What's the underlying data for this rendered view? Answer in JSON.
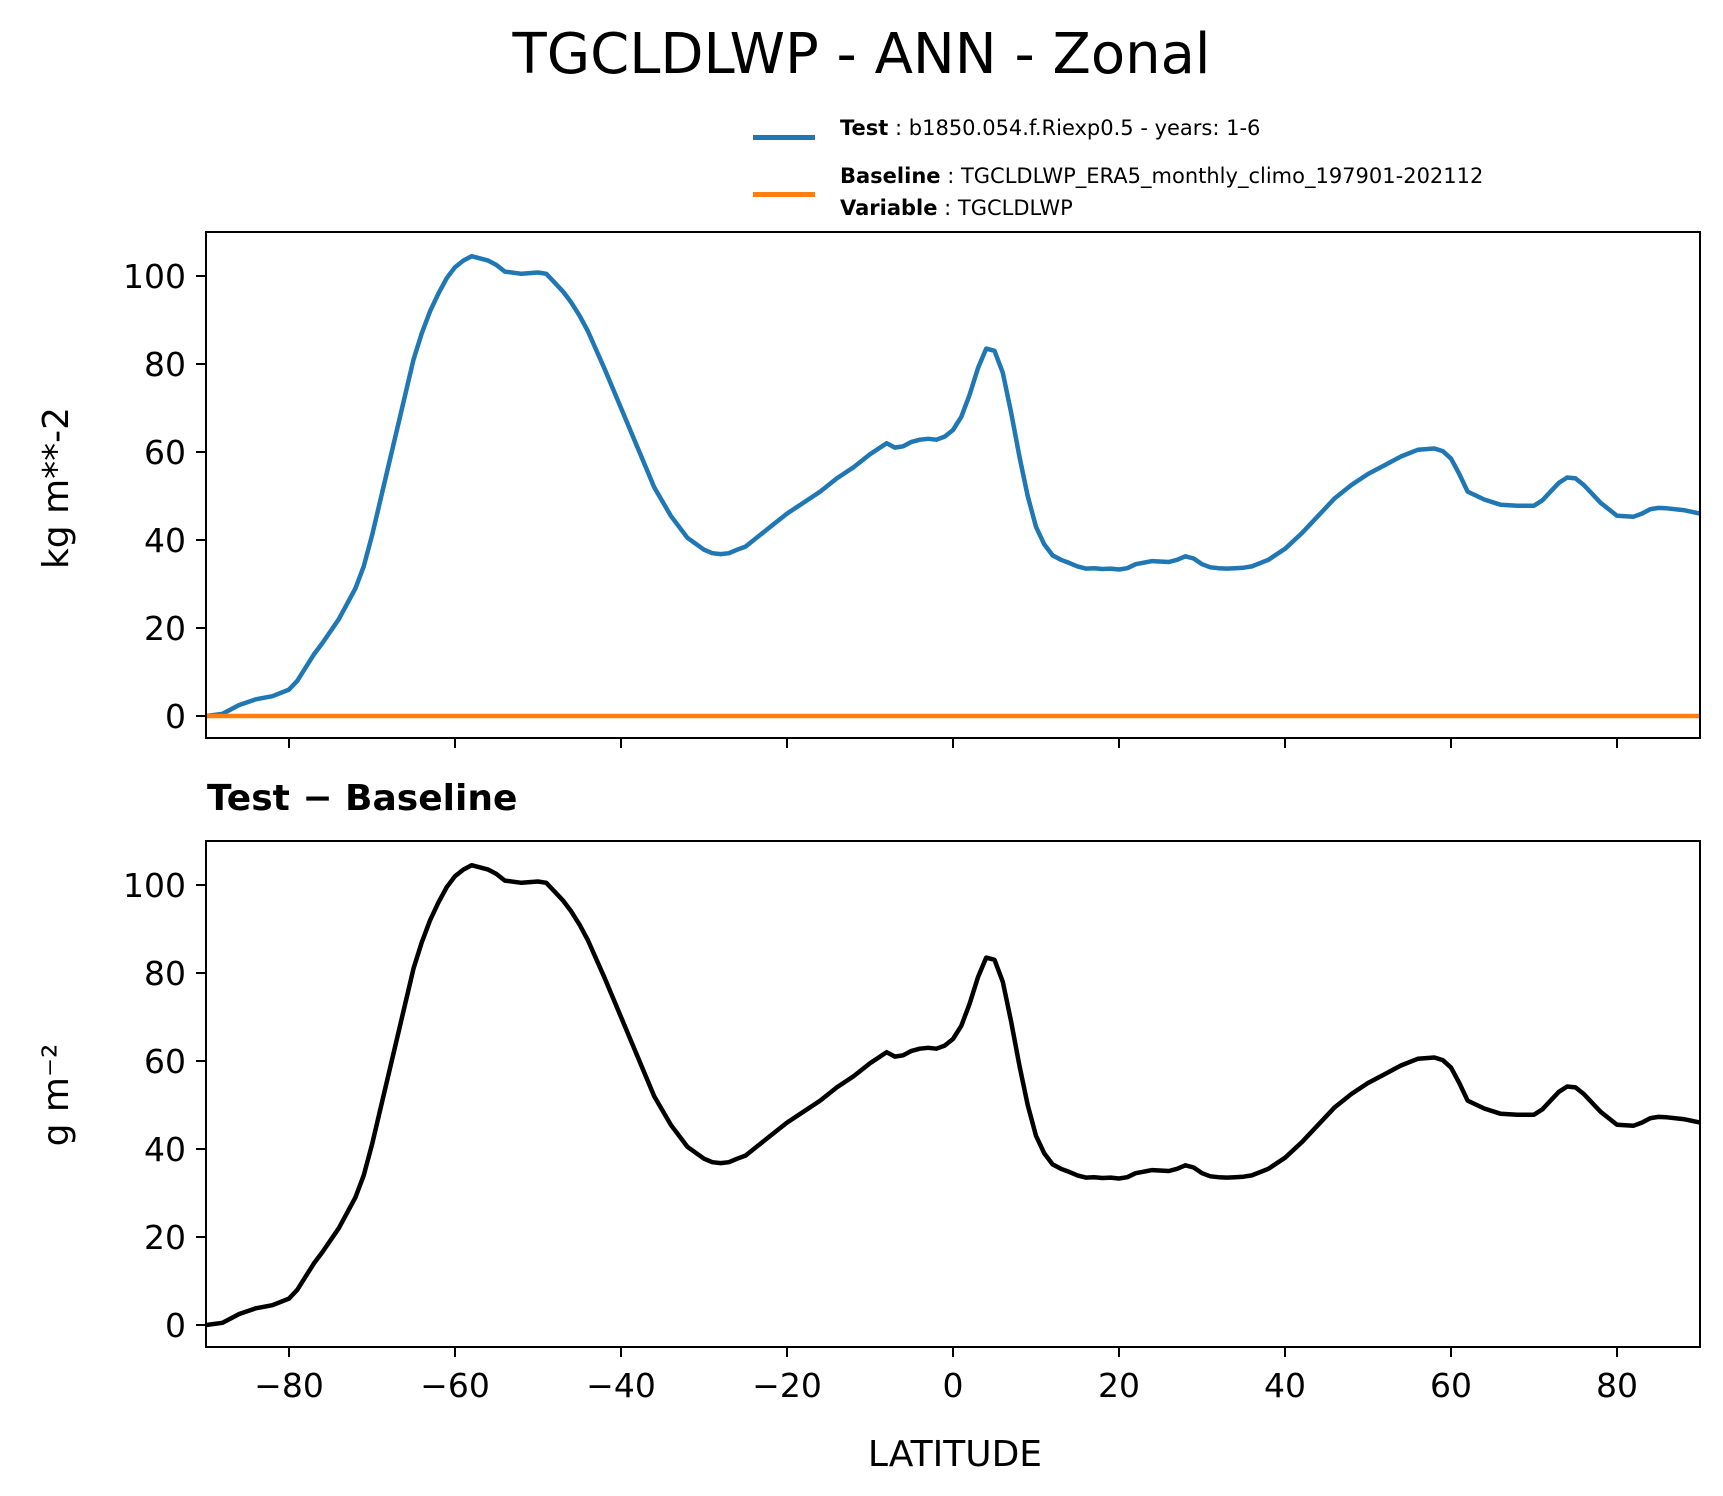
{
  "title": "TGCLDLWP - ANN - Zonal",
  "legend": {
    "test_key": "Test",
    "test_value": "b1850.054.f.Riexp0.5 - years: 1-6",
    "baseline_key": "Baseline",
    "baseline_value": "TGCLDLWP_ERA5_monthly_climo_197901-202112",
    "variable_key": "Variable",
    "variable_value": "TGCLDLWP",
    "test_color": "#1f77b4",
    "baseline_color": "#ff7f0e"
  },
  "diff_title": "Test − Baseline",
  "chart_data": [
    {
      "type": "line",
      "title": "",
      "xlabel": "",
      "ylabel": "kg m**-2",
      "xlim": [
        -90,
        90
      ],
      "ylim": [
        -5,
        110
      ],
      "xticks": [
        -80,
        -60,
        -40,
        -20,
        0,
        20,
        40,
        60,
        80
      ],
      "xtick_labels_shown": false,
      "yticks": [
        0,
        20,
        40,
        60,
        80,
        100
      ],
      "ytick_labels": [
        "0",
        "20",
        "40",
        "60",
        "80",
        "100"
      ],
      "series": [
        {
          "name": "Test",
          "color": "#1f77b4",
          "x": [
            -90,
            -88,
            -86,
            -84,
            -82,
            -80,
            -79,
            -78,
            -77,
            -76,
            -74,
            -72,
            -71,
            -70,
            -68,
            -66,
            -65,
            -64,
            -63,
            -62,
            -61,
            -60,
            -59,
            -58,
            -56,
            -55,
            -54,
            -52,
            -50,
            -49,
            -48,
            -47,
            -46,
            -45,
            -44,
            -42,
            -40,
            -38,
            -36,
            -34,
            -32,
            -30,
            -29,
            -28,
            -27,
            -26,
            -25,
            -24,
            -22,
            -20,
            -18,
            -16,
            -14,
            -12,
            -10,
            -8,
            -7,
            -6,
            -5,
            -4,
            -3,
            -2,
            -1,
            0,
            1,
            2,
            3,
            4,
            5,
            6,
            7,
            8,
            9,
            10,
            11,
            12,
            13,
            14,
            15,
            16,
            17,
            18,
            19,
            20,
            21,
            22,
            24,
            26,
            27,
            28,
            29,
            30,
            31,
            32,
            33,
            34,
            35,
            36,
            38,
            40,
            42,
            44,
            46,
            48,
            50,
            52,
            54,
            56,
            58,
            59,
            60,
            61,
            62,
            64,
            66,
            68,
            70,
            71,
            72,
            73,
            74,
            75,
            76,
            78,
            80,
            82,
            83,
            84,
            85,
            86,
            88,
            90
          ],
          "y": [
            0,
            0.5,
            2.5,
            3.8,
            4.5,
            6,
            8,
            11,
            14,
            16.5,
            22,
            29,
            34,
            41,
            57,
            73,
            81,
            87,
            92,
            96,
            99.5,
            102,
            103.5,
            104.5,
            103.5,
            102.5,
            101,
            100.5,
            100.8,
            100.5,
            98.5,
            96.5,
            94,
            91,
            87.5,
            79,
            70,
            61,
            52,
            45.5,
            40.5,
            37.8,
            37,
            36.8,
            37,
            37.8,
            38.5,
            40,
            43,
            46,
            48.5,
            51,
            54,
            56.5,
            59.5,
            62,
            61,
            61.3,
            62.3,
            62.8,
            63,
            62.8,
            63.5,
            65,
            68,
            73,
            79,
            83.5,
            83,
            78,
            69,
            59,
            50,
            43,
            39,
            36.5,
            35.5,
            34.8,
            34,
            33.5,
            33.6,
            33.4,
            33.5,
            33.3,
            33.6,
            34.5,
            35.2,
            35,
            35.5,
            36.3,
            35.8,
            34.5,
            33.8,
            33.6,
            33.5,
            33.6,
            33.7,
            34,
            35.5,
            38,
            41.5,
            45.5,
            49.5,
            52.5,
            55,
            57,
            59,
            60.5,
            60.8,
            60.2,
            58.5,
            55,
            51,
            49.2,
            48,
            47.8,
            47.8,
            49,
            51,
            53,
            54.2,
            54,
            52.5,
            48.5,
            45.5,
            45.3,
            46,
            47,
            47.3,
            47.2,
            46.8,
            46
          ]
        },
        {
          "name": "Baseline",
          "color": "#ff7f0e",
          "x": [
            -90,
            90
          ],
          "y": [
            0,
            0
          ]
        }
      ]
    },
    {
      "type": "line",
      "title": "Test − Baseline",
      "xlabel": "LATITUDE",
      "ylabel": "g m⁻²",
      "xlim": [
        -90,
        90
      ],
      "ylim": [
        -5,
        110
      ],
      "xticks": [
        -80,
        -60,
        -40,
        -20,
        0,
        20,
        40,
        60,
        80
      ],
      "xtick_labels": [
        "−80",
        "−60",
        "−40",
        "−20",
        "0",
        "20",
        "40",
        "60",
        "80"
      ],
      "yticks": [
        0,
        20,
        40,
        60,
        80,
        100
      ],
      "ytick_labels": [
        "0",
        "20",
        "40",
        "60",
        "80",
        "100"
      ],
      "series": [
        {
          "name": "Test − Baseline",
          "color": "#000000",
          "x": [
            -90,
            -88,
            -86,
            -84,
            -82,
            -80,
            -79,
            -78,
            -77,
            -76,
            -74,
            -72,
            -71,
            -70,
            -68,
            -66,
            -65,
            -64,
            -63,
            -62,
            -61,
            -60,
            -59,
            -58,
            -56,
            -55,
            -54,
            -52,
            -50,
            -49,
            -48,
            -47,
            -46,
            -45,
            -44,
            -42,
            -40,
            -38,
            -36,
            -34,
            -32,
            -30,
            -29,
            -28,
            -27,
            -26,
            -25,
            -24,
            -22,
            -20,
            -18,
            -16,
            -14,
            -12,
            -10,
            -8,
            -7,
            -6,
            -5,
            -4,
            -3,
            -2,
            -1,
            0,
            1,
            2,
            3,
            4,
            5,
            6,
            7,
            8,
            9,
            10,
            11,
            12,
            13,
            14,
            15,
            16,
            17,
            18,
            19,
            20,
            21,
            22,
            24,
            26,
            27,
            28,
            29,
            30,
            31,
            32,
            33,
            34,
            35,
            36,
            38,
            40,
            42,
            44,
            46,
            48,
            50,
            52,
            54,
            56,
            58,
            59,
            60,
            61,
            62,
            64,
            66,
            68,
            70,
            71,
            72,
            73,
            74,
            75,
            76,
            78,
            80,
            82,
            83,
            84,
            85,
            86,
            88,
            90
          ],
          "y": [
            0,
            0.5,
            2.5,
            3.8,
            4.5,
            6,
            8,
            11,
            14,
            16.5,
            22,
            29,
            34,
            41,
            57,
            73,
            81,
            87,
            92,
            96,
            99.5,
            102,
            103.5,
            104.5,
            103.5,
            102.5,
            101,
            100.5,
            100.8,
            100.5,
            98.5,
            96.5,
            94,
            91,
            87.5,
            79,
            70,
            61,
            52,
            45.5,
            40.5,
            37.8,
            37,
            36.8,
            37,
            37.8,
            38.5,
            40,
            43,
            46,
            48.5,
            51,
            54,
            56.5,
            59.5,
            62,
            61,
            61.3,
            62.3,
            62.8,
            63,
            62.8,
            63.5,
            65,
            68,
            73,
            79,
            83.5,
            83,
            78,
            69,
            59,
            50,
            43,
            39,
            36.5,
            35.5,
            34.8,
            34,
            33.5,
            33.6,
            33.4,
            33.5,
            33.3,
            33.6,
            34.5,
            35.2,
            35,
            35.5,
            36.3,
            35.8,
            34.5,
            33.8,
            33.6,
            33.5,
            33.6,
            33.7,
            34,
            35.5,
            38,
            41.5,
            45.5,
            49.5,
            52.5,
            55,
            57,
            59,
            60.5,
            60.8,
            60.2,
            58.5,
            55,
            51,
            49.2,
            48,
            47.8,
            47.8,
            49,
            51,
            53,
            54.2,
            54,
            52.5,
            48.5,
            45.5,
            45.3,
            46,
            47,
            47.3,
            47.2,
            46.8,
            46
          ]
        }
      ]
    }
  ]
}
